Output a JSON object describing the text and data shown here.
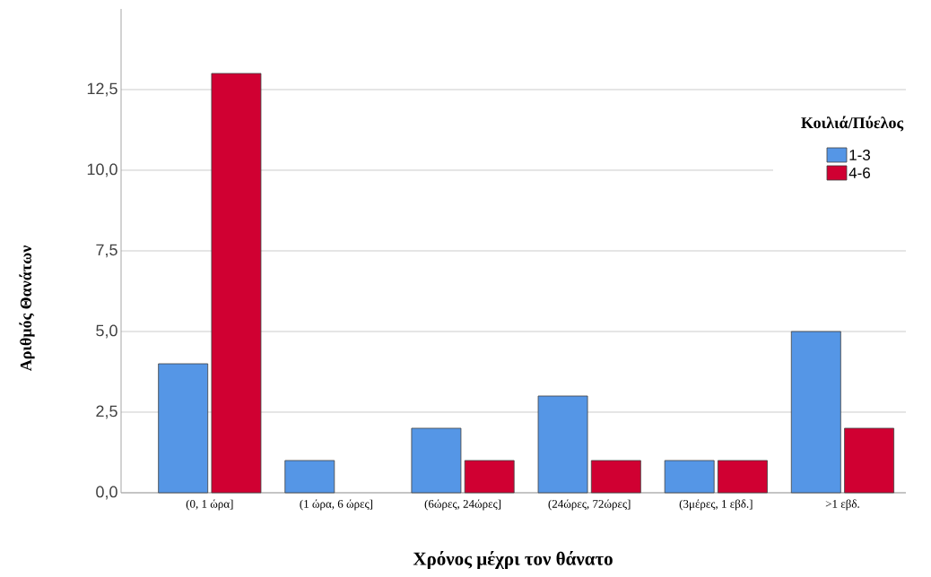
{
  "chart_data": {
    "type": "bar",
    "xlabel": "Χρόνος μέχρι τον θάνατο",
    "ylabel": "Αριθμός Θανάτων",
    "legend_title": "Κοιλιά/Πύελος",
    "categories": [
      "(0, 1 ώρα]",
      "(1 ώρα, 6 ώρες]",
      "(6ώρες, 24ώρες]",
      "(24ώρες, 72ώρες]",
      "(3μέρες, 1 εβδ.]",
      ">1 εβδ."
    ],
    "series": [
      {
        "name": "1-3",
        "color": "#5596e6",
        "values": [
          4,
          1,
          2,
          3,
          1,
          5
        ]
      },
      {
        "name": "4-6",
        "color": "#d00032",
        "values": [
          13,
          null,
          1,
          1,
          1,
          2
        ]
      }
    ],
    "ylim": [
      0,
      15
    ],
    "yticks": [
      {
        "value": 0,
        "label": "0,0"
      },
      {
        "value": 2.5,
        "label": "2,5"
      },
      {
        "value": 5,
        "label": "5,0"
      },
      {
        "value": 7.5,
        "label": "7,5"
      },
      {
        "value": 10,
        "label": "10,0"
      },
      {
        "value": 12.5,
        "label": "12,5"
      }
    ],
    "grid": "y",
    "legend": "top right"
  }
}
